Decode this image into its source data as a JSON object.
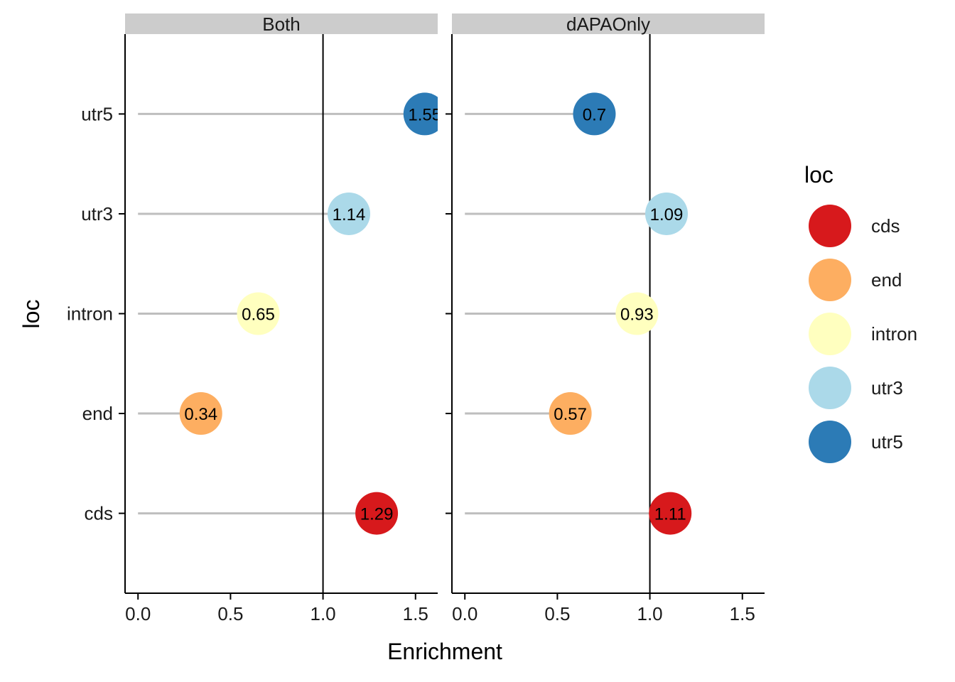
{
  "chart_data": {
    "type": "lollipop",
    "xlabel": "Enrichment",
    "ylabel": "loc",
    "xlim": [
      -0.07,
      1.62
    ],
    "x_ticks": [
      "0.0",
      "0.5",
      "1.0",
      "1.5"
    ],
    "x_tick_values": [
      0,
      0.5,
      1.0,
      1.5
    ],
    "reference_line": 1.0,
    "categories": [
      "cds",
      "end",
      "intron",
      "utr3",
      "utr5"
    ],
    "panels": [
      {
        "name": "Both",
        "points": [
          {
            "loc": "cds",
            "value": 1.29,
            "label": "1.29"
          },
          {
            "loc": "end",
            "value": 0.34,
            "label": "0.34"
          },
          {
            "loc": "intron",
            "value": 0.65,
            "label": "0.65"
          },
          {
            "loc": "utr3",
            "value": 1.14,
            "label": "1.14"
          },
          {
            "loc": "utr5",
            "value": 1.55,
            "label": "1.55"
          }
        ]
      },
      {
        "name": "dAPAOnly",
        "points": [
          {
            "loc": "cds",
            "value": 1.11,
            "label": "1.11"
          },
          {
            "loc": "end",
            "value": 0.57,
            "label": "0.57"
          },
          {
            "loc": "intron",
            "value": 0.93,
            "label": "0.93"
          },
          {
            "loc": "utr3",
            "value": 1.09,
            "label": "1.09"
          },
          {
            "loc": "utr5",
            "value": 0.7,
            "label": "0.7"
          }
        ]
      }
    ],
    "legend": {
      "title": "loc",
      "placement": "right",
      "entries": [
        {
          "label": "cds",
          "color": "#d7191c"
        },
        {
          "label": "end",
          "color": "#fdae61"
        },
        {
          "label": "intron",
          "color": "#ffffbf"
        },
        {
          "label": "utr3",
          "color": "#abd9e9"
        },
        {
          "label": "utr5",
          "color": "#2c7bb6"
        }
      ]
    },
    "segment_color": "#bebebe",
    "strip_color": "#cccccc"
  }
}
